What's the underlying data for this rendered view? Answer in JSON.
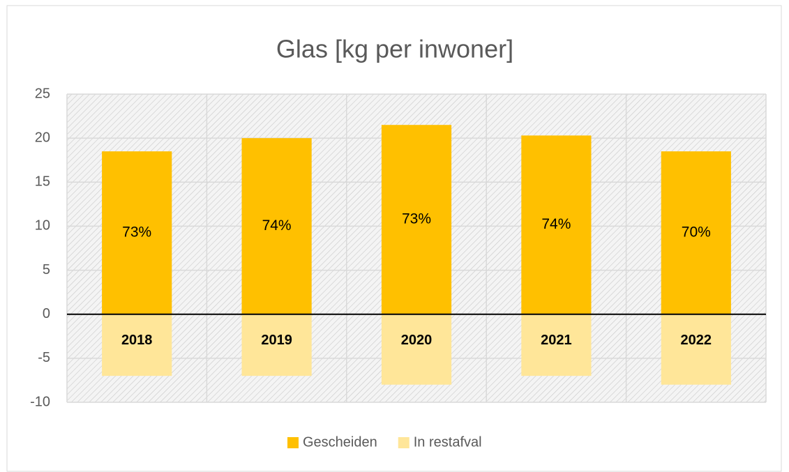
{
  "chart_data": {
    "type": "bar",
    "title": "Glas [kg per inwoner]",
    "categories": [
      "2018",
      "2019",
      "2020",
      "2021",
      "2022"
    ],
    "series": [
      {
        "name": "Gescheiden",
        "color": "#ffc000",
        "values": [
          18.5,
          20,
          21.5,
          20.3,
          18.5
        ]
      },
      {
        "name": "In restafval",
        "color": "#ffe699",
        "values": [
          -7,
          -7,
          -8,
          -7,
          -8
        ]
      }
    ],
    "annotations": [
      "73%",
      "74%",
      "73%",
      "74%",
      "70%"
    ],
    "ylim": [
      -10,
      25
    ],
    "yticks": [
      -10,
      -5,
      0,
      5,
      10,
      15,
      20,
      25
    ],
    "grid": true,
    "legend": "bottom"
  }
}
